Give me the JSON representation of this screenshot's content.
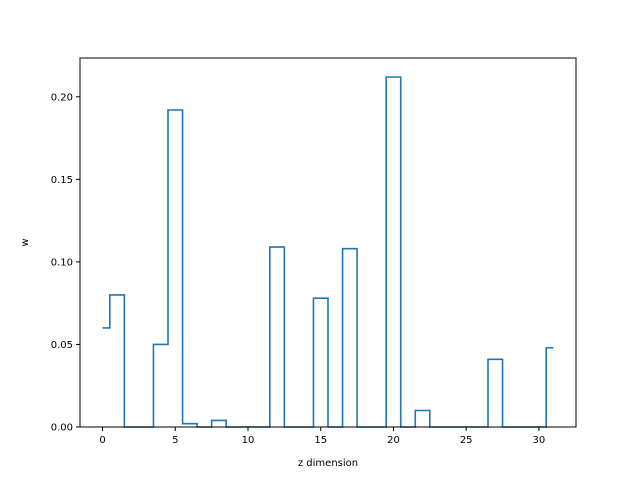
{
  "chart_data": {
    "type": "line",
    "drawstyle": "steps-mid",
    "title": "",
    "xlabel": "z dimension",
    "ylabel": "w",
    "xlim": [
      -1.55,
      32.55
    ],
    "ylim": [
      0.0,
      0.2235
    ],
    "xticks": [
      0,
      5,
      10,
      15,
      20,
      25,
      30
    ],
    "xtick_labels": [
      "0",
      "5",
      "10",
      "15",
      "20",
      "25",
      "30"
    ],
    "yticks": [
      0.0,
      0.05,
      0.1,
      0.15,
      0.2
    ],
    "ytick_labels": [
      "0.00",
      "0.05",
      "0.10",
      "0.15",
      "0.20"
    ],
    "grid": false,
    "legend": false,
    "series": [
      {
        "color": "#1f77b4",
        "x": [
          0,
          1,
          2,
          3,
          4,
          5,
          6,
          7,
          8,
          9,
          10,
          11,
          12,
          13,
          14,
          15,
          16,
          17,
          18,
          19,
          20,
          21,
          22,
          23,
          24,
          25,
          26,
          27,
          28,
          29,
          30,
          31
        ],
        "values": [
          0.06,
          0.08,
          0.0,
          0.0,
          0.05,
          0.192,
          0.002,
          0.0,
          0.004,
          0.0,
          0.0,
          0.0,
          0.109,
          0.0,
          0.0,
          0.078,
          0.0,
          0.108,
          0.0,
          0.0,
          0.212,
          0.0,
          0.01,
          0.0,
          0.0,
          0.0,
          0.0,
          0.041,
          0.0,
          0.0,
          0.0,
          0.048
        ]
      }
    ]
  }
}
